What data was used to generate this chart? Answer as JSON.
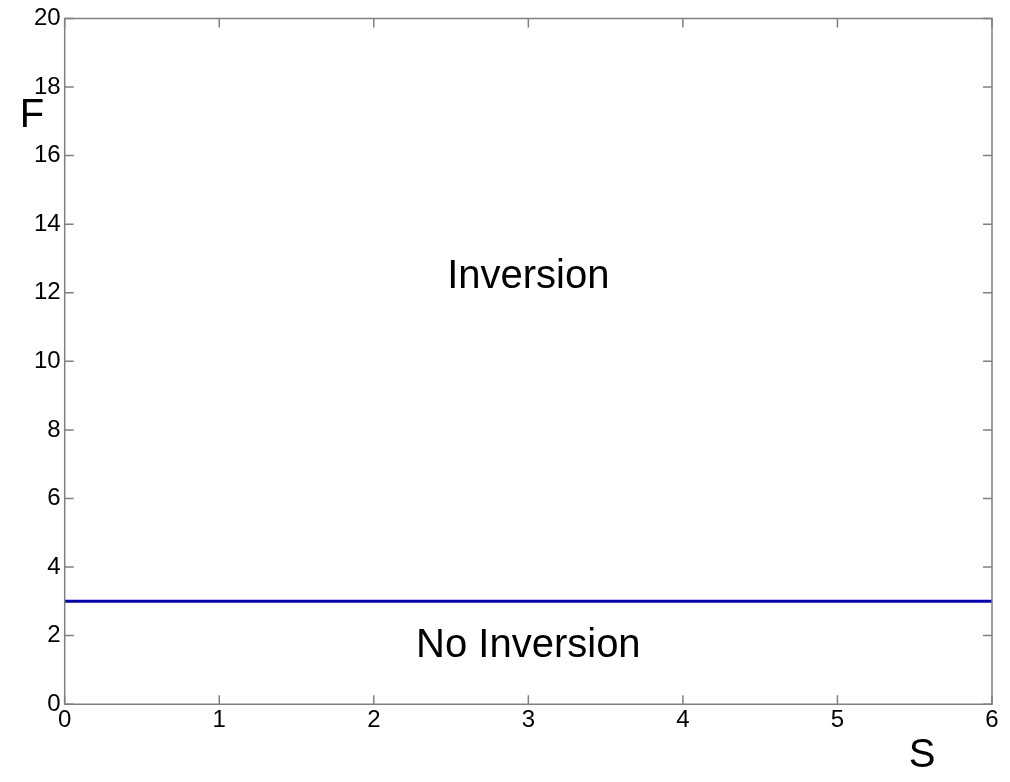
{
  "chart_data": {
    "type": "line",
    "xlabel": "S",
    "ylabel": "F",
    "x": [
      0,
      6
    ],
    "series": [
      {
        "color": "#0000cc",
        "values": [
          3,
          3
        ]
      }
    ],
    "xlim": [
      0,
      6
    ],
    "xticks": [
      0,
      1,
      2,
      3,
      4,
      5,
      6
    ],
    "ylim": [
      0,
      20
    ],
    "yticks": [
      0,
      2,
      4,
      6,
      8,
      10,
      12,
      14,
      16,
      18,
      20
    ],
    "grid": false,
    "legend": false,
    "marker": "none",
    "line_style": "solid",
    "annotations": [
      "Inversion",
      "No Inversion"
    ]
  }
}
